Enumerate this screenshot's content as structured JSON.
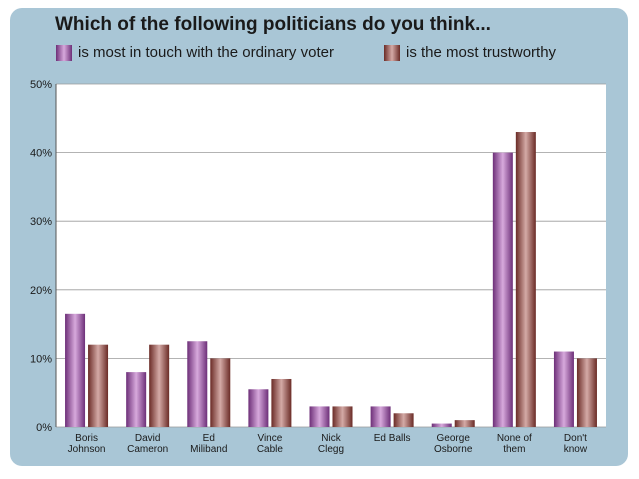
{
  "chart_data": {
    "type": "bar",
    "title": "Which of the following politicians do you think...",
    "categories": [
      [
        "Boris",
        "Johnson"
      ],
      [
        "David",
        "Cameron"
      ],
      [
        "Ed",
        "Miliband"
      ],
      [
        "Vince",
        "Cable"
      ],
      [
        "Nick",
        "Clegg"
      ],
      [
        "Ed Balls"
      ],
      [
        "George",
        "Osborne"
      ],
      [
        "None of",
        "them"
      ],
      [
        "Don't",
        "know"
      ]
    ],
    "series": [
      {
        "name": "is most in touch with the ordinary voter",
        "color_dark": "#6d2f78",
        "color_light": "#d7a9dc",
        "values": [
          16.5,
          8,
          12.5,
          5.5,
          3,
          3,
          0.5,
          40,
          11
        ]
      },
      {
        "name": "is the most trustworthy",
        "color_dark": "#6a2b26",
        "color_light": "#d4aaa6",
        "values": [
          12,
          12,
          10,
          7,
          3,
          2,
          1,
          43,
          10
        ]
      }
    ],
    "ylim": [
      0,
      50
    ],
    "yticks": [
      0,
      10,
      20,
      30,
      40,
      50
    ],
    "ytick_suffix": "%",
    "grid": true,
    "legend_position": "top"
  }
}
